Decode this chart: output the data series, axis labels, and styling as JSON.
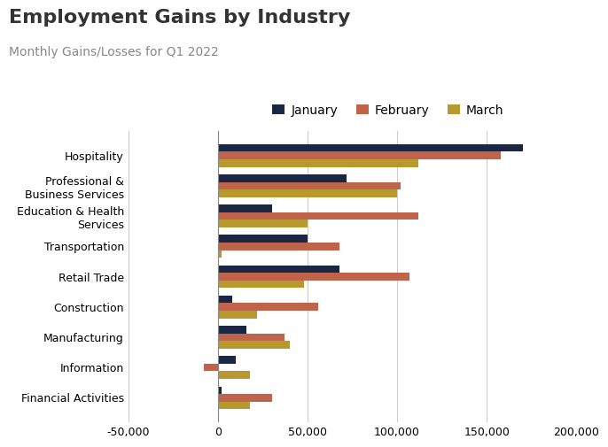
{
  "title": "Employment Gains by Industry",
  "subtitle": "Monthly Gains/Losses for Q1 2022",
  "categories": [
    "Hospitality",
    "Professional &\nBusiness Services",
    "Education & Health\nServices",
    "Transportation",
    "Retail Trade",
    "Construction",
    "Manufacturing",
    "Information",
    "Financial Activities"
  ],
  "months": [
    "January",
    "February",
    "March"
  ],
  "values": {
    "January": [
      170000,
      72000,
      30000,
      50000,
      68000,
      8000,
      16000,
      10000,
      2000
    ],
    "February": [
      158000,
      102000,
      112000,
      68000,
      107000,
      56000,
      37000,
      -8000,
      30000
    ],
    "March": [
      112000,
      100000,
      50000,
      2000,
      48000,
      22000,
      40000,
      18000,
      18000
    ]
  },
  "colors": {
    "January": "#1a2744",
    "February": "#c0634b",
    "March": "#b8992e"
  },
  "xlim": [
    -50000,
    200000
  ],
  "xticks": [
    -50000,
    0,
    50000,
    100000,
    150000,
    200000
  ],
  "background_color": "#ffffff",
  "bar_height": 0.25,
  "title_fontsize": 16,
  "subtitle_fontsize": 10,
  "legend_fontsize": 10,
  "axis_fontsize": 9
}
